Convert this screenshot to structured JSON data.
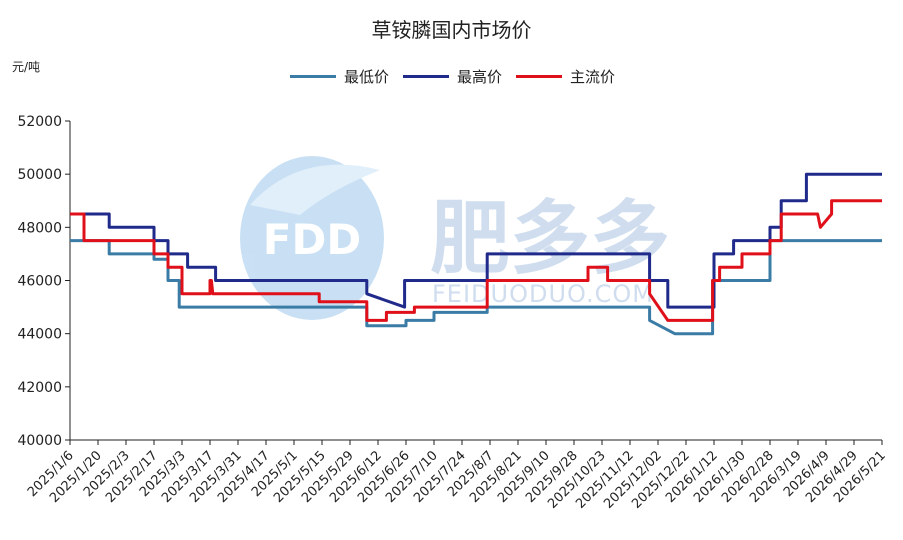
{
  "chart_data": {
    "type": "line",
    "title": "草铵膦国内市场价",
    "unit_label": "元/吨",
    "ylim": [
      40000,
      52000
    ],
    "yticks": [
      40000,
      42000,
      44000,
      46000,
      48000,
      50000,
      52000
    ],
    "x_labels": [
      "2025/1/6",
      "2025/1/20",
      "2025/2/3",
      "2025/2/17",
      "2025/3/3",
      "2025/3/17",
      "2025/3/31",
      "2025/4/17",
      "2025/5/1",
      "2025/5/15",
      "2025/5/29",
      "2025/6/12",
      "2025/6/26",
      "2025/7/10",
      "2025/7/24",
      "2025/8/7",
      "2025/8/21",
      "2025/9/10",
      "2025/9/28",
      "2025/10/23",
      "2025/11/12",
      "2025/12/02",
      "2025/12/22",
      "2026/1/12",
      "2026/1/30",
      "2026/2/28",
      "2026/3/19",
      "2026/4/9",
      "2026/4/29",
      "2026/5/21"
    ],
    "x_range": [
      0,
      29
    ],
    "series": [
      {
        "name": "最低价",
        "color": "#3a7ca5",
        "x": [
          0,
          1.4,
          1.4,
          3.0,
          3.0,
          3.5,
          3.5,
          3.9,
          3.9,
          4.2,
          4.2,
          5.0,
          5.0,
          10.6,
          10.6,
          12.0,
          12.0,
          13.0,
          13.0,
          14.9,
          14.9,
          20.7,
          20.7,
          21.6,
          21.6,
          22.95,
          22.95,
          25.0,
          25.0,
          29.0
        ],
        "y": [
          47500,
          47500,
          47000,
          47000,
          46800,
          46800,
          46000,
          46000,
          45000,
          45000,
          45000,
          45000,
          45000,
          45000,
          44300,
          44300,
          44500,
          44500,
          44800,
          44800,
          45000,
          45000,
          44500,
          44000,
          44000,
          44000,
          46000,
          46000,
          47500,
          47500
        ]
      },
      {
        "name": "最高价",
        "color": "#1f2a8a",
        "x": [
          0,
          1.4,
          1.4,
          3.0,
          3.0,
          3.5,
          3.5,
          4.2,
          4.2,
          5.2,
          5.2,
          10.6,
          10.6,
          11.95,
          11.95,
          14.9,
          14.9,
          20.7,
          20.7,
          21.35,
          21.35,
          23.0,
          23.0,
          23.7,
          23.7,
          25.0,
          25.0,
          25.4,
          25.4,
          26.3,
          26.3,
          27.2,
          27.2,
          29.0
        ],
        "y": [
          48500,
          48500,
          48000,
          48000,
          47500,
          47500,
          47000,
          47000,
          46500,
          46500,
          46000,
          46000,
          45500,
          45000,
          46000,
          46000,
          47000,
          47000,
          46000,
          46000,
          45000,
          45000,
          47000,
          47000,
          47500,
          47500,
          48000,
          48000,
          49000,
          49000,
          50000,
          50000,
          50000,
          50000
        ]
      },
      {
        "name": "主流价",
        "color": "#e0101a",
        "x": [
          0,
          0.5,
          0.5,
          3.0,
          3.0,
          3.5,
          3.5,
          4.0,
          4.0,
          5.0,
          5.0,
          5.05,
          5.1,
          8.9,
          8.9,
          10.6,
          10.6,
          11.3,
          11.3,
          12.3,
          12.3,
          14.9,
          14.9,
          18.5,
          18.5,
          19.2,
          19.2,
          20.7,
          20.7,
          21.35,
          21.35,
          22.95,
          22.95,
          23.2,
          23.2,
          24.0,
          24.0,
          25.0,
          25.0,
          25.4,
          25.4,
          26.3,
          26.3,
          26.7,
          26.8,
          27.2,
          27.2,
          29.0
        ],
        "y": [
          48500,
          48500,
          47500,
          47500,
          47000,
          47000,
          46500,
          46500,
          45500,
          45500,
          46000,
          46000,
          45500,
          45500,
          45200,
          45200,
          44500,
          44500,
          44800,
          44800,
          45000,
          45000,
          46000,
          46000,
          46500,
          46500,
          46000,
          46000,
          45500,
          44500,
          44500,
          44500,
          46000,
          46000,
          46500,
          46500,
          47000,
          47000,
          47500,
          47500,
          48500,
          48500,
          48500,
          48500,
          48000,
          48500,
          49000,
          49000
        ]
      }
    ]
  },
  "watermark": {
    "logo_text": "FDD",
    "brand_text": "肥多多",
    "url_text": "FEIDUODUO.COM"
  }
}
